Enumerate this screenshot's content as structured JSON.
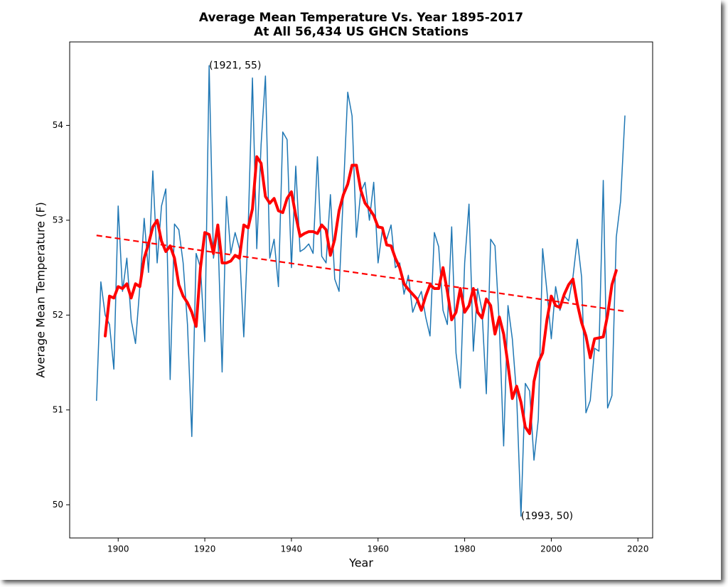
{
  "chart_data": {
    "type": "line",
    "title": "Average Mean Temperature Vs. Year 1895-2017",
    "subtitle": "At All 56,434 US GHCN Stations",
    "xlabel": "Year",
    "ylabel": "Average Mean Temperature (F)",
    "xlim": [
      1888.8,
      2023.4
    ],
    "ylim": [
      49.65,
      54.88
    ],
    "xticks": [
      1900,
      1920,
      1940,
      1960,
      1980,
      2000,
      2020
    ],
    "yticks": [
      50,
      51,
      52,
      53,
      54
    ],
    "grid": false,
    "series": [
      {
        "color": "#1f77b4",
        "width": 1.5,
        "dashed": false,
        "x": [
          1895,
          1896,
          1897,
          1898,
          1899,
          1900,
          1901,
          1902,
          1903,
          1904,
          1905,
          1906,
          1907,
          1908,
          1909,
          1910,
          1911,
          1912,
          1913,
          1914,
          1915,
          1916,
          1917,
          1918,
          1919,
          1920,
          1921,
          1922,
          1923,
          1924,
          1925,
          1926,
          1927,
          1928,
          1929,
          1930,
          1931,
          1932,
          1933,
          1934,
          1935,
          1936,
          1937,
          1938,
          1939,
          1940,
          1941,
          1942,
          1943,
          1944,
          1945,
          1946,
          1947,
          1948,
          1949,
          1950,
          1951,
          1952,
          1953,
          1954,
          1955,
          1956,
          1957,
          1958,
          1959,
          1960,
          1961,
          1962,
          1963,
          1964,
          1965,
          1966,
          1967,
          1968,
          1969,
          1970,
          1971,
          1972,
          1973,
          1974,
          1975,
          1976,
          1977,
          1978,
          1979,
          1980,
          1981,
          1982,
          1983,
          1984,
          1985,
          1986,
          1987,
          1988,
          1989,
          1990,
          1991,
          1992,
          1993,
          1994,
          1995,
          1996,
          1997,
          1998,
          1999,
          2000,
          2001,
          2002,
          2003,
          2004,
          2005,
          2006,
          2007,
          2008,
          2009,
          2010,
          2011,
          2012,
          2013,
          2014,
          2015,
          2016,
          2017
        ],
        "values": [
          51.1,
          52.35,
          52.0,
          51.9,
          51.43,
          53.15,
          52.25,
          52.6,
          51.95,
          51.7,
          52.3,
          53.02,
          52.45,
          53.52,
          52.55,
          53.15,
          53.33,
          51.32,
          52.96,
          52.9,
          52.55,
          51.9,
          50.72,
          52.65,
          52.5,
          51.72,
          54.63,
          52.6,
          52.9,
          51.4,
          53.25,
          52.65,
          52.87,
          52.7,
          51.77,
          52.9,
          54.5,
          52.7,
          53.8,
          54.52,
          52.6,
          52.8,
          52.3,
          53.93,
          53.85,
          52.5,
          53.57,
          52.67,
          52.7,
          52.75,
          52.65,
          53.67,
          52.62,
          52.55,
          53.27,
          52.38,
          52.25,
          53.3,
          54.35,
          54.1,
          52.82,
          53.3,
          53.4,
          53.0,
          53.4,
          52.55,
          52.9,
          52.8,
          52.95,
          52.5,
          52.55,
          52.22,
          52.42,
          52.03,
          52.15,
          52.25,
          51.98,
          51.78,
          52.87,
          52.72,
          52.05,
          51.9,
          52.93,
          51.6,
          51.23,
          52.55,
          53.17,
          51.62,
          52.28,
          52.05,
          51.17,
          52.8,
          52.73,
          51.9,
          50.62,
          52.1,
          51.75,
          51.15,
          49.88,
          51.28,
          51.2,
          50.47,
          50.9,
          52.7,
          52.25,
          51.75,
          52.3,
          52.05,
          52.2,
          52.15,
          52.4,
          52.8,
          52.4,
          50.97,
          51.1,
          51.65,
          51.62,
          53.42,
          51.02,
          51.15,
          52.82,
          53.2,
          54.1
        ]
      },
      {
        "color": "#ff0000",
        "width": 4,
        "dashed": false,
        "x": [
          1897,
          1898,
          1899,
          1900,
          1901,
          1902,
          1903,
          1904,
          1905,
          1906,
          1907,
          1908,
          1909,
          1910,
          1911,
          1912,
          1913,
          1914,
          1915,
          1916,
          1917,
          1918,
          1919,
          1920,
          1921,
          1922,
          1923,
          1924,
          1925,
          1926,
          1927,
          1928,
          1929,
          1930,
          1931,
          1932,
          1933,
          1934,
          1935,
          1936,
          1937,
          1938,
          1939,
          1940,
          1941,
          1942,
          1943,
          1944,
          1945,
          1946,
          1947,
          1948,
          1949,
          1950,
          1951,
          1952,
          1953,
          1954,
          1955,
          1956,
          1957,
          1958,
          1959,
          1960,
          1961,
          1962,
          1963,
          1964,
          1965,
          1966,
          1967,
          1968,
          1969,
          1970,
          1971,
          1972,
          1973,
          1974,
          1975,
          1976,
          1977,
          1978,
          1979,
          1980,
          1981,
          1982,
          1983,
          1984,
          1985,
          1986,
          1987,
          1988,
          1989,
          1990,
          1991,
          1992,
          1993,
          1994,
          1995,
          1996,
          1997,
          1998,
          1999,
          2000,
          2001,
          2002,
          2003,
          2004,
          2005,
          2006,
          2007,
          2008,
          2009,
          2010,
          2011,
          2012,
          2013,
          2014,
          2015
        ],
        "values": [
          51.78,
          52.2,
          52.18,
          52.3,
          52.28,
          52.33,
          52.18,
          52.33,
          52.3,
          52.6,
          52.75,
          52.93,
          53.0,
          52.78,
          52.67,
          52.73,
          52.6,
          52.32,
          52.2,
          52.13,
          52.03,
          51.88,
          52.5,
          52.87,
          52.85,
          52.65,
          52.95,
          52.55,
          52.55,
          52.57,
          52.63,
          52.6,
          52.95,
          52.92,
          53.12,
          53.67,
          53.6,
          53.25,
          53.18,
          53.23,
          53.1,
          53.08,
          53.23,
          53.3,
          53.05,
          52.83,
          52.86,
          52.88,
          52.88,
          52.86,
          52.95,
          52.9,
          52.63,
          52.8,
          53.1,
          53.27,
          53.38,
          53.58,
          53.58,
          53.32,
          53.18,
          53.12,
          53.05,
          52.93,
          52.92,
          52.74,
          52.73,
          52.6,
          52.5,
          52.33,
          52.27,
          52.22,
          52.17,
          52.05,
          52.2,
          52.32,
          52.28,
          52.28,
          52.5,
          52.25,
          51.95,
          52.03,
          52.28,
          52.03,
          52.1,
          52.28,
          52.03,
          51.97,
          52.17,
          52.1,
          51.8,
          51.98,
          51.8,
          51.48,
          51.12,
          51.25,
          51.08,
          50.82,
          50.75,
          51.3,
          51.5,
          51.6,
          51.95,
          52.2,
          52.1,
          52.08,
          52.22,
          52.32,
          52.38,
          52.12,
          51.92,
          51.78,
          51.55,
          51.75,
          51.76,
          51.77,
          52.0,
          52.32,
          52.47
        ]
      },
      {
        "color": "#ff0000",
        "width": 2.2,
        "dashed": true,
        "x": [
          1895,
          2017
        ],
        "values": [
          52.84,
          52.04
        ]
      }
    ],
    "annotations": [
      {
        "text": "(1921, 55)",
        "x": 1921,
        "y": 54.63
      },
      {
        "text": "(1993, 50)",
        "x": 1993,
        "y": 49.88
      }
    ]
  }
}
